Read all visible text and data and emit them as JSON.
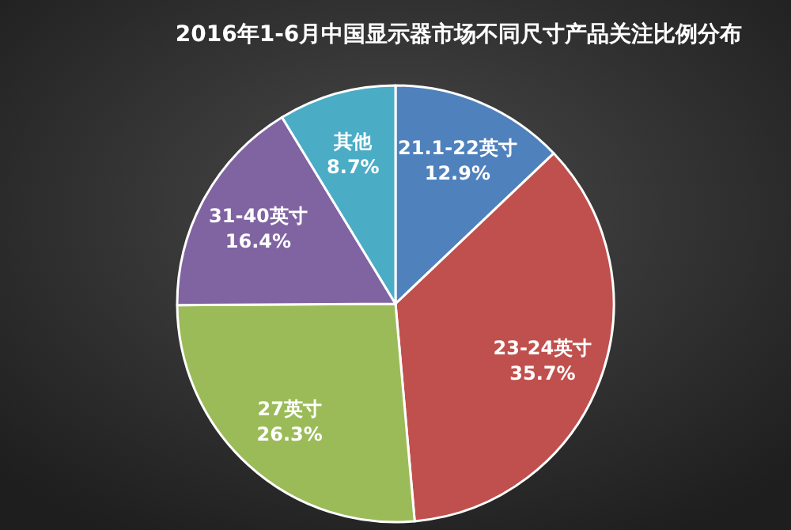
{
  "chart_data": {
    "type": "pie",
    "title": "2016年1-6月中国显示器市场不同尺寸产品关注比例分布",
    "categories": [
      "21.1-22英寸",
      "23-24英寸",
      "27英寸",
      "31-40英寸",
      "其他"
    ],
    "values": [
      12.9,
      35.7,
      26.3,
      16.4,
      8.7
    ],
    "value_labels": [
      "12.9%",
      "35.7%",
      "26.3%",
      "16.4%",
      "8.7%"
    ],
    "colors": [
      "#4f81bd",
      "#c0504d",
      "#9bbb59",
      "#8064a2",
      "#4bacc6"
    ]
  }
}
